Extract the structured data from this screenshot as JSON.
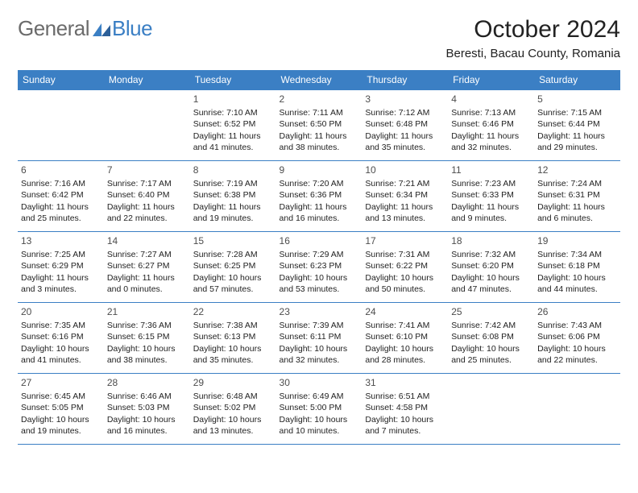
{
  "logo": {
    "text1": "General",
    "text2": "Blue"
  },
  "title": "October 2024",
  "subtitle": "Beresti, Bacau County, Romania",
  "colors": {
    "header_bg": "#3b7fc4",
    "header_text": "#ffffff",
    "cell_border": "#3b7fc4",
    "logo_gray": "#6b6b6b",
    "logo_blue": "#3b7fc4",
    "body_text": "#222222"
  },
  "day_names": [
    "Sunday",
    "Monday",
    "Tuesday",
    "Wednesday",
    "Thursday",
    "Friday",
    "Saturday"
  ],
  "weeks": [
    [
      null,
      null,
      {
        "n": "1",
        "sr": "7:10 AM",
        "ss": "6:52 PM",
        "dl": "11 hours and 41 minutes."
      },
      {
        "n": "2",
        "sr": "7:11 AM",
        "ss": "6:50 PM",
        "dl": "11 hours and 38 minutes."
      },
      {
        "n": "3",
        "sr": "7:12 AM",
        "ss": "6:48 PM",
        "dl": "11 hours and 35 minutes."
      },
      {
        "n": "4",
        "sr": "7:13 AM",
        "ss": "6:46 PM",
        "dl": "11 hours and 32 minutes."
      },
      {
        "n": "5",
        "sr": "7:15 AM",
        "ss": "6:44 PM",
        "dl": "11 hours and 29 minutes."
      }
    ],
    [
      {
        "n": "6",
        "sr": "7:16 AM",
        "ss": "6:42 PM",
        "dl": "11 hours and 25 minutes."
      },
      {
        "n": "7",
        "sr": "7:17 AM",
        "ss": "6:40 PM",
        "dl": "11 hours and 22 minutes."
      },
      {
        "n": "8",
        "sr": "7:19 AM",
        "ss": "6:38 PM",
        "dl": "11 hours and 19 minutes."
      },
      {
        "n": "9",
        "sr": "7:20 AM",
        "ss": "6:36 PM",
        "dl": "11 hours and 16 minutes."
      },
      {
        "n": "10",
        "sr": "7:21 AM",
        "ss": "6:34 PM",
        "dl": "11 hours and 13 minutes."
      },
      {
        "n": "11",
        "sr": "7:23 AM",
        "ss": "6:33 PM",
        "dl": "11 hours and 9 minutes."
      },
      {
        "n": "12",
        "sr": "7:24 AM",
        "ss": "6:31 PM",
        "dl": "11 hours and 6 minutes."
      }
    ],
    [
      {
        "n": "13",
        "sr": "7:25 AM",
        "ss": "6:29 PM",
        "dl": "11 hours and 3 minutes."
      },
      {
        "n": "14",
        "sr": "7:27 AM",
        "ss": "6:27 PM",
        "dl": "11 hours and 0 minutes."
      },
      {
        "n": "15",
        "sr": "7:28 AM",
        "ss": "6:25 PM",
        "dl": "10 hours and 57 minutes."
      },
      {
        "n": "16",
        "sr": "7:29 AM",
        "ss": "6:23 PM",
        "dl": "10 hours and 53 minutes."
      },
      {
        "n": "17",
        "sr": "7:31 AM",
        "ss": "6:22 PM",
        "dl": "10 hours and 50 minutes."
      },
      {
        "n": "18",
        "sr": "7:32 AM",
        "ss": "6:20 PM",
        "dl": "10 hours and 47 minutes."
      },
      {
        "n": "19",
        "sr": "7:34 AM",
        "ss": "6:18 PM",
        "dl": "10 hours and 44 minutes."
      }
    ],
    [
      {
        "n": "20",
        "sr": "7:35 AM",
        "ss": "6:16 PM",
        "dl": "10 hours and 41 minutes."
      },
      {
        "n": "21",
        "sr": "7:36 AM",
        "ss": "6:15 PM",
        "dl": "10 hours and 38 minutes."
      },
      {
        "n": "22",
        "sr": "7:38 AM",
        "ss": "6:13 PM",
        "dl": "10 hours and 35 minutes."
      },
      {
        "n": "23",
        "sr": "7:39 AM",
        "ss": "6:11 PM",
        "dl": "10 hours and 32 minutes."
      },
      {
        "n": "24",
        "sr": "7:41 AM",
        "ss": "6:10 PM",
        "dl": "10 hours and 28 minutes."
      },
      {
        "n": "25",
        "sr": "7:42 AM",
        "ss": "6:08 PM",
        "dl": "10 hours and 25 minutes."
      },
      {
        "n": "26",
        "sr": "7:43 AM",
        "ss": "6:06 PM",
        "dl": "10 hours and 22 minutes."
      }
    ],
    [
      {
        "n": "27",
        "sr": "6:45 AM",
        "ss": "5:05 PM",
        "dl": "10 hours and 19 minutes."
      },
      {
        "n": "28",
        "sr": "6:46 AM",
        "ss": "5:03 PM",
        "dl": "10 hours and 16 minutes."
      },
      {
        "n": "29",
        "sr": "6:48 AM",
        "ss": "5:02 PM",
        "dl": "10 hours and 13 minutes."
      },
      {
        "n": "30",
        "sr": "6:49 AM",
        "ss": "5:00 PM",
        "dl": "10 hours and 10 minutes."
      },
      {
        "n": "31",
        "sr": "6:51 AM",
        "ss": "4:58 PM",
        "dl": "10 hours and 7 minutes."
      },
      null,
      null
    ]
  ],
  "labels": {
    "sunrise": "Sunrise:",
    "sunset": "Sunset:",
    "daylight": "Daylight:"
  }
}
